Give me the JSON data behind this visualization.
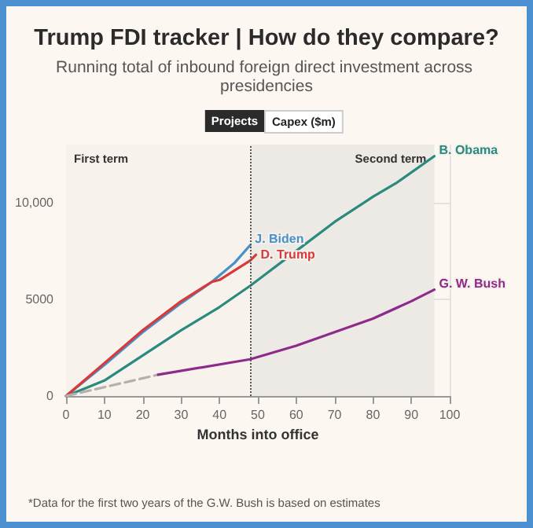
{
  "chart_data": {
    "type": "line",
    "title": "Trump FDI tracker | How do they compare?",
    "subtitle": "Running total of inbound foreign direct investment across presidencies",
    "xlabel": "Months into office",
    "annotations": [
      "Projects",
      "Capex ($m)",
      "*Data for the first two years of the G.W. Bush is based on estimates"
    ],
    "series": [
      {
        "name": "B. Obama",
        "color": "#2a8a7e",
        "x": [
          0,
          5,
          10,
          20,
          30,
          40,
          48,
          52,
          60,
          70,
          80,
          86,
          96
        ],
        "values": [
          0,
          400,
          800,
          2100,
          3400,
          4600,
          5700,
          6300,
          7500,
          9000,
          10300,
          11000,
          12400
        ]
      },
      {
        "name": "J. Biden",
        "color": "#4a90c8",
        "x": [
          0,
          10,
          20,
          30,
          38,
          44,
          48
        ],
        "values": [
          0,
          1600,
          3300,
          4800,
          5900,
          6900,
          7800
        ]
      },
      {
        "name": "D. Trump",
        "color": "#d83a3a",
        "x": [
          0,
          10,
          20,
          30,
          38,
          40,
          48,
          49.5
        ],
        "values": [
          0,
          1700,
          3400,
          4900,
          5900,
          6000,
          7000,
          7300
        ]
      },
      {
        "color": "#b5b0ab",
        "line_style": "dashed",
        "x": [
          0,
          24
        ],
        "values": [
          0,
          1100
        ]
      },
      {
        "name": "G. W. Bush",
        "color": "#8e2a8a",
        "x": [
          24,
          48,
          60,
          70,
          80,
          90,
          96
        ],
        "values": [
          1100,
          1900,
          2600,
          3300,
          4000,
          4900,
          5500
        ]
      }
    ],
    "xlim": [
      0,
      100
    ],
    "xticks": [
      0,
      10,
      20,
      30,
      40,
      50,
      60,
      70,
      80,
      90,
      100
    ],
    "ylim": [
      0,
      13000
    ],
    "yticks": [
      0,
      5000,
      {
        "value": 10000,
        "label": "10,000"
      }
    ],
    "grid": true,
    "legend": false,
    "marker": "none",
    "line_style": "solid",
    "ref_lines": [
      {
        "axis": "x",
        "value": 48,
        "line_style": "dotted",
        "color": "#555555"
      }
    ],
    "bands": [
      {
        "axis": "x",
        "from": 0,
        "to": 48,
        "label": "First term",
        "color": "#f8f2ed"
      },
      {
        "axis": "x",
        "from": 48,
        "to": 96,
        "label": "Second term",
        "color": "#ede9e5"
      }
    ]
  }
}
